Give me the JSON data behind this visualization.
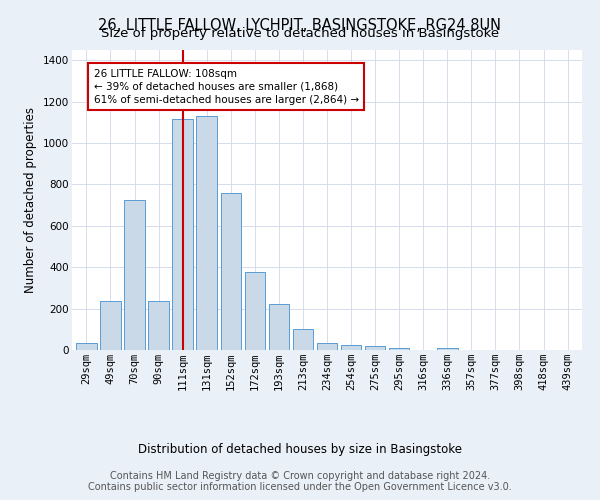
{
  "title": "26, LITTLE FALLOW, LYCHPIT, BASINGSTOKE, RG24 8UN",
  "subtitle": "Size of property relative to detached houses in Basingstoke",
  "xlabel": "Distribution of detached houses by size in Basingstoke",
  "ylabel": "Number of detached properties",
  "categories": [
    "29sqm",
    "49sqm",
    "70sqm",
    "90sqm",
    "111sqm",
    "131sqm",
    "152sqm",
    "172sqm",
    "193sqm",
    "213sqm",
    "234sqm",
    "254sqm",
    "275sqm",
    "295sqm",
    "316sqm",
    "336sqm",
    "357sqm",
    "377sqm",
    "398sqm",
    "418sqm",
    "439sqm"
  ],
  "values": [
    35,
    235,
    725,
    235,
    1115,
    1130,
    760,
    375,
    220,
    100,
    35,
    25,
    20,
    10,
    0,
    10,
    0,
    0,
    0,
    0,
    0
  ],
  "bar_color": "#c9d9e8",
  "bar_edge_color": "#5b9bd5",
  "vline_x": 4.0,
  "vline_color": "#cc0000",
  "annotation_text": "26 LITTLE FALLOW: 108sqm\n← 39% of detached houses are smaller (1,868)\n61% of semi-detached houses are larger (2,864) →",
  "annotation_box_color": "#cc0000",
  "ylim": [
    0,
    1450
  ],
  "yticks": [
    0,
    200,
    400,
    600,
    800,
    1000,
    1200,
    1400
  ],
  "footer": "Contains HM Land Registry data © Crown copyright and database right 2024.\nContains public sector information licensed under the Open Government Licence v3.0.",
  "bg_color": "#eaf0f8",
  "plot_bg_color": "#ffffff",
  "grid_color": "#d0d8e8",
  "title_fontsize": 10.5,
  "subtitle_fontsize": 9.5,
  "axis_label_fontsize": 8.5,
  "tick_fontsize": 7.5,
  "footer_fontsize": 7.0
}
